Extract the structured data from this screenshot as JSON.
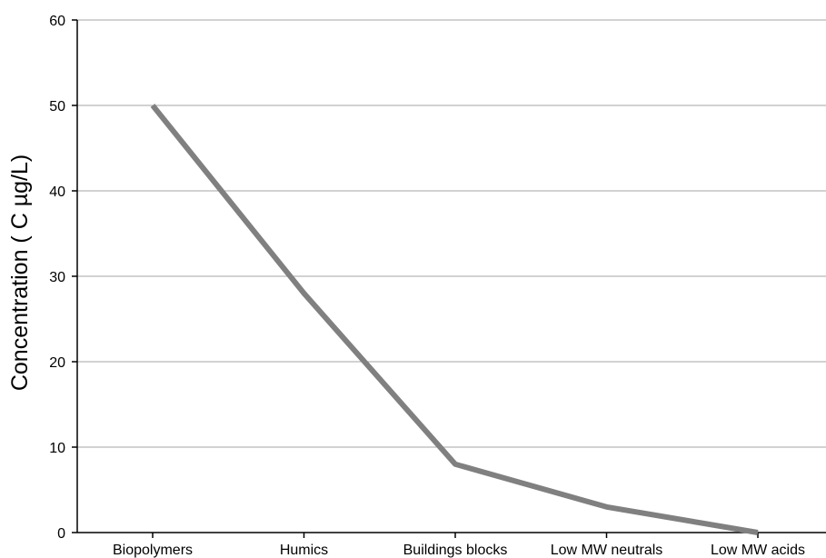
{
  "chart_data": {
    "type": "line",
    "title": "",
    "xlabel": "",
    "ylabel": "Concentration ( C µg/L)",
    "categories": [
      "Biopolymers",
      "Humics",
      "Buildings blocks",
      "Low MW neutrals",
      "Low MW acids"
    ],
    "series": [
      {
        "values": [
          50,
          28,
          8,
          3,
          0
        ]
      }
    ],
    "ylim": [
      0,
      60
    ],
    "yticks": [
      0,
      10,
      20,
      30,
      40,
      50,
      60
    ],
    "grid": "horizontal",
    "legend": "none",
    "colors": {
      "line": "#808080",
      "gridline": "#a6a6a6",
      "axis": "#000000"
    }
  }
}
